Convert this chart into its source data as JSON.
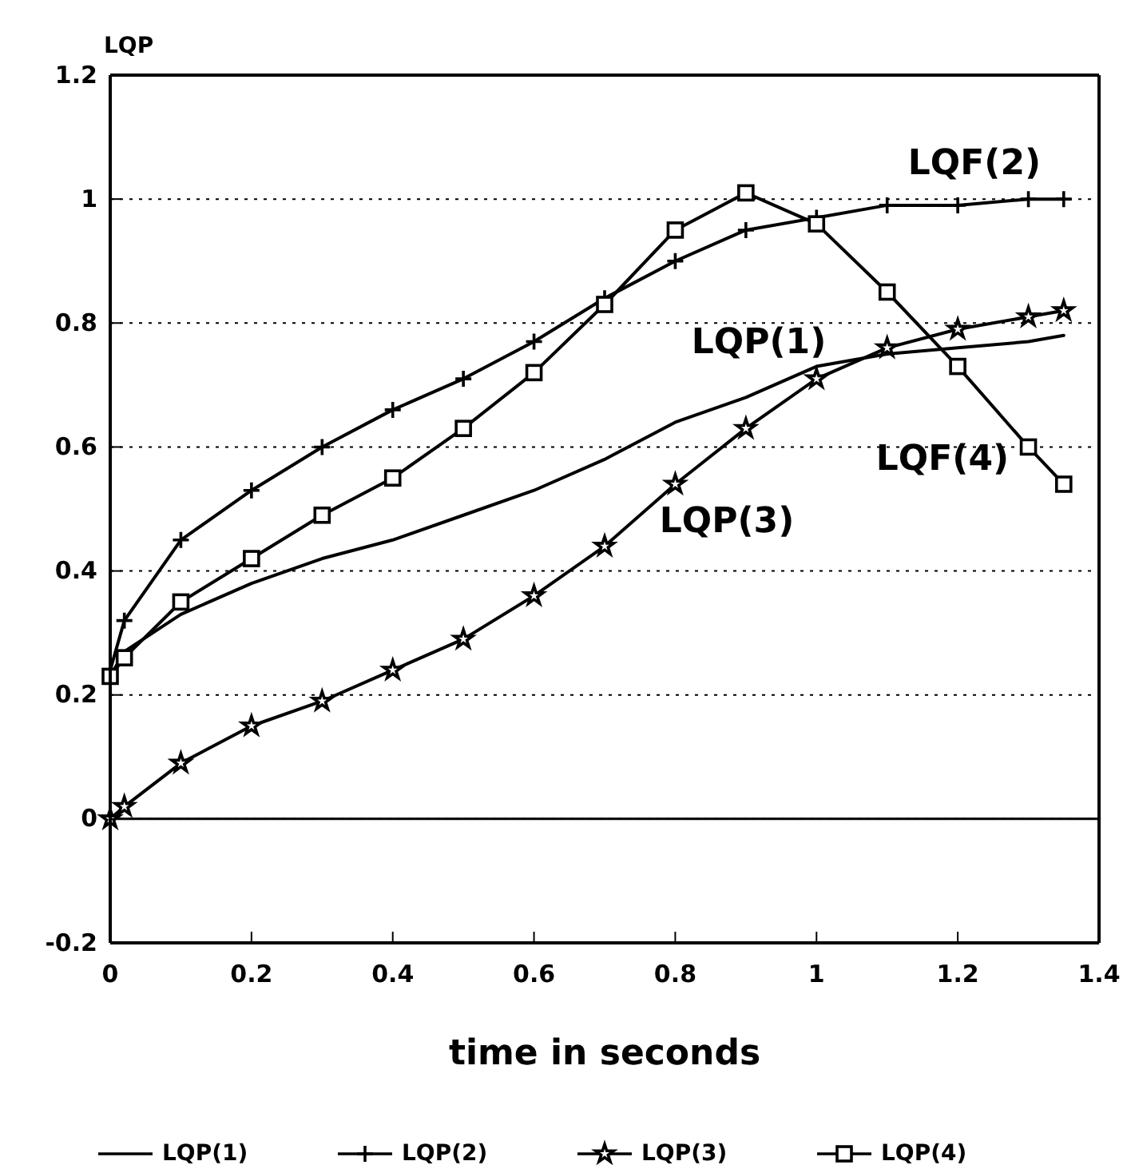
{
  "chart_data": {
    "type": "line",
    "ylabel": "LQP",
    "xlabel": "time in seconds",
    "x": [
      0,
      0.02,
      0.1,
      0.2,
      0.3,
      0.4,
      0.5,
      0.6,
      0.7,
      0.8,
      0.9,
      1.0,
      1.1,
      1.2,
      1.3,
      1.35
    ],
    "series": [
      {
        "name": "LQP(1)",
        "color": "#000000",
        "marker": "none",
        "values": [
          0.23,
          0.27,
          0.33,
          0.38,
          0.42,
          0.45,
          0.49,
          0.53,
          0.58,
          0.64,
          0.68,
          0.73,
          0.75,
          0.76,
          0.77,
          0.78
        ]
      },
      {
        "name": "LQP(2)",
        "color": "#000000",
        "marker": "cross",
        "values": [
          0.24,
          0.32,
          0.45,
          0.53,
          0.6,
          0.66,
          0.71,
          0.77,
          0.84,
          0.9,
          0.95,
          0.97,
          0.99,
          0.99,
          1.0,
          1.0
        ]
      },
      {
        "name": "LQP(3)",
        "color": "#000000",
        "marker": "star",
        "values": [
          0,
          0.02,
          0.09,
          0.15,
          0.19,
          0.24,
          0.29,
          0.36,
          0.44,
          0.54,
          0.63,
          0.71,
          0.76,
          0.79,
          0.81,
          0.82
        ]
      },
      {
        "name": "LQP(4)",
        "color": "#000000",
        "marker": "square",
        "values": [
          0.23,
          0.26,
          0.35,
          0.42,
          0.49,
          0.55,
          0.63,
          0.72,
          0.83,
          0.95,
          1.01,
          0.96,
          0.85,
          0.73,
          0.6,
          0.54
        ]
      }
    ],
    "xlim": [
      0,
      1.4
    ],
    "xticks": [
      0,
      0.2,
      0.4,
      0.6,
      0.8,
      1,
      1.2,
      1.4
    ],
    "ylim": [
      -0.2,
      1.2
    ],
    "yticks": [
      -0.2,
      0,
      0.2,
      0.4,
      0.6,
      0.8,
      1,
      1.2
    ],
    "grid": "y",
    "legend": "bottom",
    "ref_lines": [
      {
        "axis": "y",
        "value": 0,
        "line_style": "solid"
      }
    ],
    "annotations": [
      "LQF(2)",
      "LQP(1)",
      "LQF(4)",
      "LQP(3)"
    ]
  }
}
